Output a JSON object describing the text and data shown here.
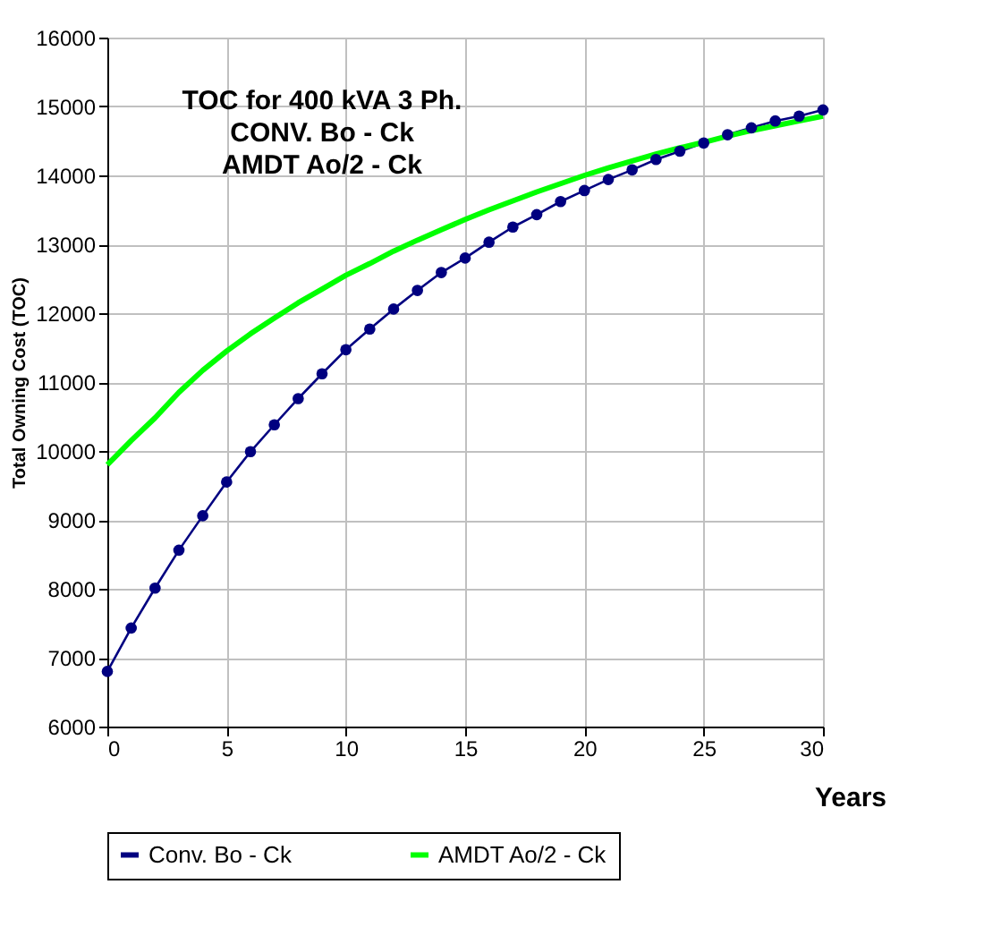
{
  "chart_data": {
    "type": "line",
    "annotations": [
      "TOC for 400 kVA 3 Ph.",
      "CONV. Bo - Ck",
      "AMDT  Ao/2 - Ck"
    ],
    "xlabel": "Years",
    "ylabel": "Total Owning Cost (TOC)",
    "x": [
      0,
      1,
      2,
      3,
      4,
      5,
      6,
      7,
      8,
      9,
      10,
      11,
      12,
      13,
      14,
      15,
      16,
      17,
      18,
      19,
      20,
      21,
      22,
      23,
      24,
      25,
      26,
      27,
      28,
      29,
      30
    ],
    "series": [
      {
        "name": "Conv. Bo - Ck",
        "color": "#000080",
        "marker": "circle",
        "values": [
          6800,
          7430,
          8010,
          8560,
          9060,
          9550,
          9990,
          10380,
          10760,
          11120,
          11470,
          11770,
          12060,
          12330,
          12590,
          12800,
          13030,
          13250,
          13430,
          13620,
          13780,
          13940,
          14080,
          14230,
          14350,
          14470,
          14590,
          14690,
          14790,
          14860,
          14950
        ]
      },
      {
        "name": "AMDT Ao/2 - Ck",
        "color": "#00ff00",
        "marker": "none",
        "values": [
          9800,
          10150,
          10480,
          10850,
          11170,
          11450,
          11700,
          11930,
          12150,
          12350,
          12550,
          12720,
          12900,
          13060,
          13210,
          13360,
          13500,
          13630,
          13760,
          13880,
          14000,
          14110,
          14210,
          14310,
          14400,
          14480,
          14570,
          14650,
          14720,
          14790,
          14860
        ]
      }
    ],
    "xlim": [
      0,
      30
    ],
    "xticks": [
      0,
      5,
      10,
      15,
      20,
      25,
      30
    ],
    "ylim": [
      6000,
      16000
    ],
    "yticks": [
      6000,
      7000,
      8000,
      9000,
      10000,
      11000,
      12000,
      13000,
      14000,
      15000,
      16000
    ],
    "grid": true,
    "legend": "bottom"
  }
}
